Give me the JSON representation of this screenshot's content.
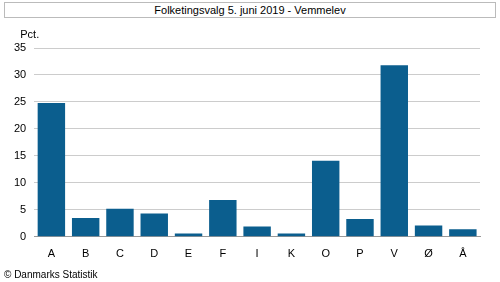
{
  "chart_data": {
    "type": "bar",
    "title": "Folketingsvalg 5. juni 2019 - Vemmelev",
    "y_label": "Pct.",
    "source": "© Danmarks Statistik",
    "categories": [
      "A",
      "B",
      "C",
      "D",
      "E",
      "F",
      "I",
      "K",
      "O",
      "P",
      "V",
      "Ø",
      "Å"
    ],
    "values": [
      24.8,
      3.5,
      5.2,
      4.3,
      0.6,
      6.8,
      1.9,
      0.6,
      14.1,
      3.3,
      31.8,
      2.1,
      1.4
    ],
    "color": "#0b5e8e",
    "ylim": [
      0,
      35
    ],
    "yticks": [
      0,
      5,
      10,
      15,
      20,
      25,
      30,
      35
    ],
    "grid": true
  }
}
